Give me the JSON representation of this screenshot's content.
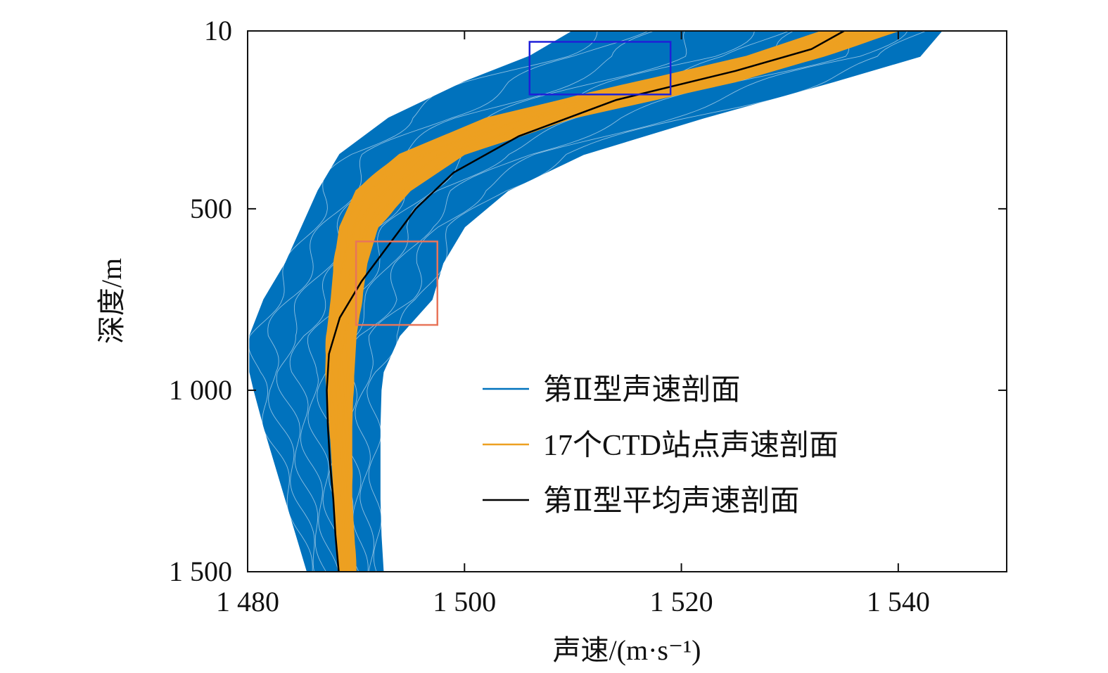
{
  "chart_data": {
    "type": "line",
    "title": "",
    "xlabel": "声速/(m·s⁻¹)",
    "ylabel": "深度/m",
    "xlim": [
      1480,
      1550
    ],
    "ylim": [
      10,
      1500
    ],
    "y_reversed": true,
    "grid": false,
    "x_ticks": [
      {
        "value": 1480,
        "label": "1 480"
      },
      {
        "value": 1500,
        "label": "1 500"
      },
      {
        "value": 1520,
        "label": "1 520"
      },
      {
        "value": 1540,
        "label": "1 540"
      }
    ],
    "y_ticks": [
      {
        "value": 10,
        "label": "10"
      },
      {
        "value": 500,
        "label": "500"
      },
      {
        "value": 1000,
        "label": "1 000"
      },
      {
        "value": 1500,
        "label": "1 500"
      }
    ],
    "legend_position": "bottom-right",
    "series": [
      {
        "name": "第Ⅱ型声速剖面",
        "color": "#0072BD",
        "style": "band",
        "depth": [
          10,
          80,
          150,
          250,
          350,
          450,
          550,
          650,
          750,
          850,
          950,
          1000,
          1100,
          1200,
          1300,
          1400,
          1500
        ],
        "min": [
          1510,
          1506,
          1500,
          1493,
          1488.5,
          1486.5,
          1485,
          1483.5,
          1481.5,
          1480.2,
          1480.2,
          1480.6,
          1481.5,
          1482.5,
          1483.5,
          1484.5,
          1485.5
        ],
        "max": [
          1544,
          1542,
          1534,
          1522,
          1511,
          1504,
          1500,
          1498,
          1497,
          1494,
          1492.5,
          1492.3,
          1492.2,
          1492.2,
          1492.2,
          1492.3,
          1492.5
        ]
      },
      {
        "name": "17个CTD站点声速剖面",
        "color": "#EDA021",
        "style": "band",
        "depth": [
          10,
          80,
          150,
          250,
          350,
          450,
          550,
          650,
          750,
          850,
          950,
          1000,
          1100,
          1200,
          1300,
          1400,
          1500
        ],
        "min": [
          1533,
          1526,
          1516,
          1502,
          1494,
          1490,
          1488.5,
          1488,
          1487.7,
          1487.3,
          1487.2,
          1487.3,
          1487.6,
          1487.8,
          1488,
          1488.2,
          1488.5
        ],
        "max": [
          1540,
          1533,
          1525,
          1510,
          1500,
          1495,
          1492,
          1491,
          1490.5,
          1490,
          1489.8,
          1489.7,
          1489.6,
          1489.6,
          1489.6,
          1489.8,
          1490
        ]
      },
      {
        "name": "第Ⅱ型平均声速剖面",
        "color": "#000000",
        "style": "line",
        "depth": [
          10,
          60,
          120,
          200,
          300,
          400,
          500,
          600,
          700,
          800,
          900,
          1000,
          1100,
          1200,
          1300,
          1400,
          1500
        ],
        "values": [
          1535,
          1532,
          1525,
          1514,
          1505,
          1499,
          1495.5,
          1493,
          1490.5,
          1488.5,
          1487.5,
          1487.3,
          1487.4,
          1487.6,
          1487.9,
          1488.1,
          1488.4
        ]
      }
    ],
    "annotations": [
      {
        "type": "rectangle",
        "color": "#1F1FD8",
        "x_range": [
          1506,
          1519
        ],
        "depth_range": [
          40,
          185
        ]
      },
      {
        "type": "rectangle",
        "color": "#E8755A",
        "x_range": [
          1490,
          1497.5
        ],
        "depth_range": [
          590,
          820
        ]
      }
    ]
  }
}
